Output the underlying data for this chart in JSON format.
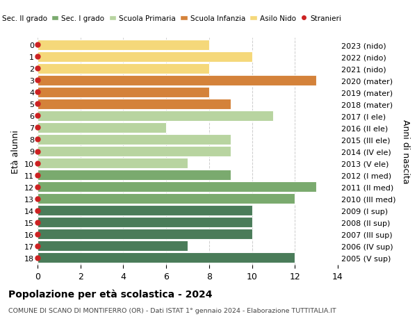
{
  "ages": [
    18,
    17,
    16,
    15,
    14,
    13,
    12,
    11,
    10,
    9,
    8,
    7,
    6,
    5,
    4,
    3,
    2,
    1,
    0
  ],
  "years": [
    "2005 (V sup)",
    "2006 (IV sup)",
    "2007 (III sup)",
    "2008 (II sup)",
    "2009 (I sup)",
    "2010 (III med)",
    "2011 (II med)",
    "2012 (I med)",
    "2013 (V ele)",
    "2014 (IV ele)",
    "2015 (III ele)",
    "2016 (II ele)",
    "2017 (I ele)",
    "2018 (mater)",
    "2019 (mater)",
    "2020 (mater)",
    "2021 (nido)",
    "2022 (nido)",
    "2023 (nido)"
  ],
  "values": [
    12,
    7,
    10,
    10,
    10,
    12,
    13,
    9,
    7,
    9,
    9,
    6,
    11,
    9,
    8,
    13,
    8,
    10,
    8
  ],
  "bar_colors": [
    "#4a7c59",
    "#4a7c59",
    "#4a7c59",
    "#4a7c59",
    "#4a7c59",
    "#7aaa6e",
    "#7aaa6e",
    "#7aaa6e",
    "#b8d4a0",
    "#b8d4a0",
    "#b8d4a0",
    "#b8d4a0",
    "#b8d4a0",
    "#d4823a",
    "#d4823a",
    "#d4823a",
    "#f5d87a",
    "#f5d87a",
    "#f5d87a"
  ],
  "legend_labels": [
    "Sec. II grado",
    "Sec. I grado",
    "Scuola Primaria",
    "Scuola Infanzia",
    "Asilo Nido",
    "Stranieri"
  ],
  "legend_colors": [
    "#4a7c59",
    "#7aaa6e",
    "#b8d4a0",
    "#d4823a",
    "#f5d87a",
    "#cc2222"
  ],
  "ylabel_left": "Età alunni",
  "ylabel_right": "Anni di nascita",
  "title": "Popolazione per età scolastica - 2024",
  "subtitle": "COMUNE DI SCANO DI MONTIFERRO (OR) - Dati ISTAT 1° gennaio 2024 - Elaborazione TUTTITALIA.IT",
  "xlim": [
    0,
    14
  ],
  "xticks": [
    0,
    2,
    4,
    6,
    8,
    10,
    12,
    14
  ],
  "background_color": "#ffffff",
  "bar_edge_color": "#ffffff",
  "grid_color": "#cccccc",
  "dot_color": "#cc2222",
  "dot_size": 25
}
